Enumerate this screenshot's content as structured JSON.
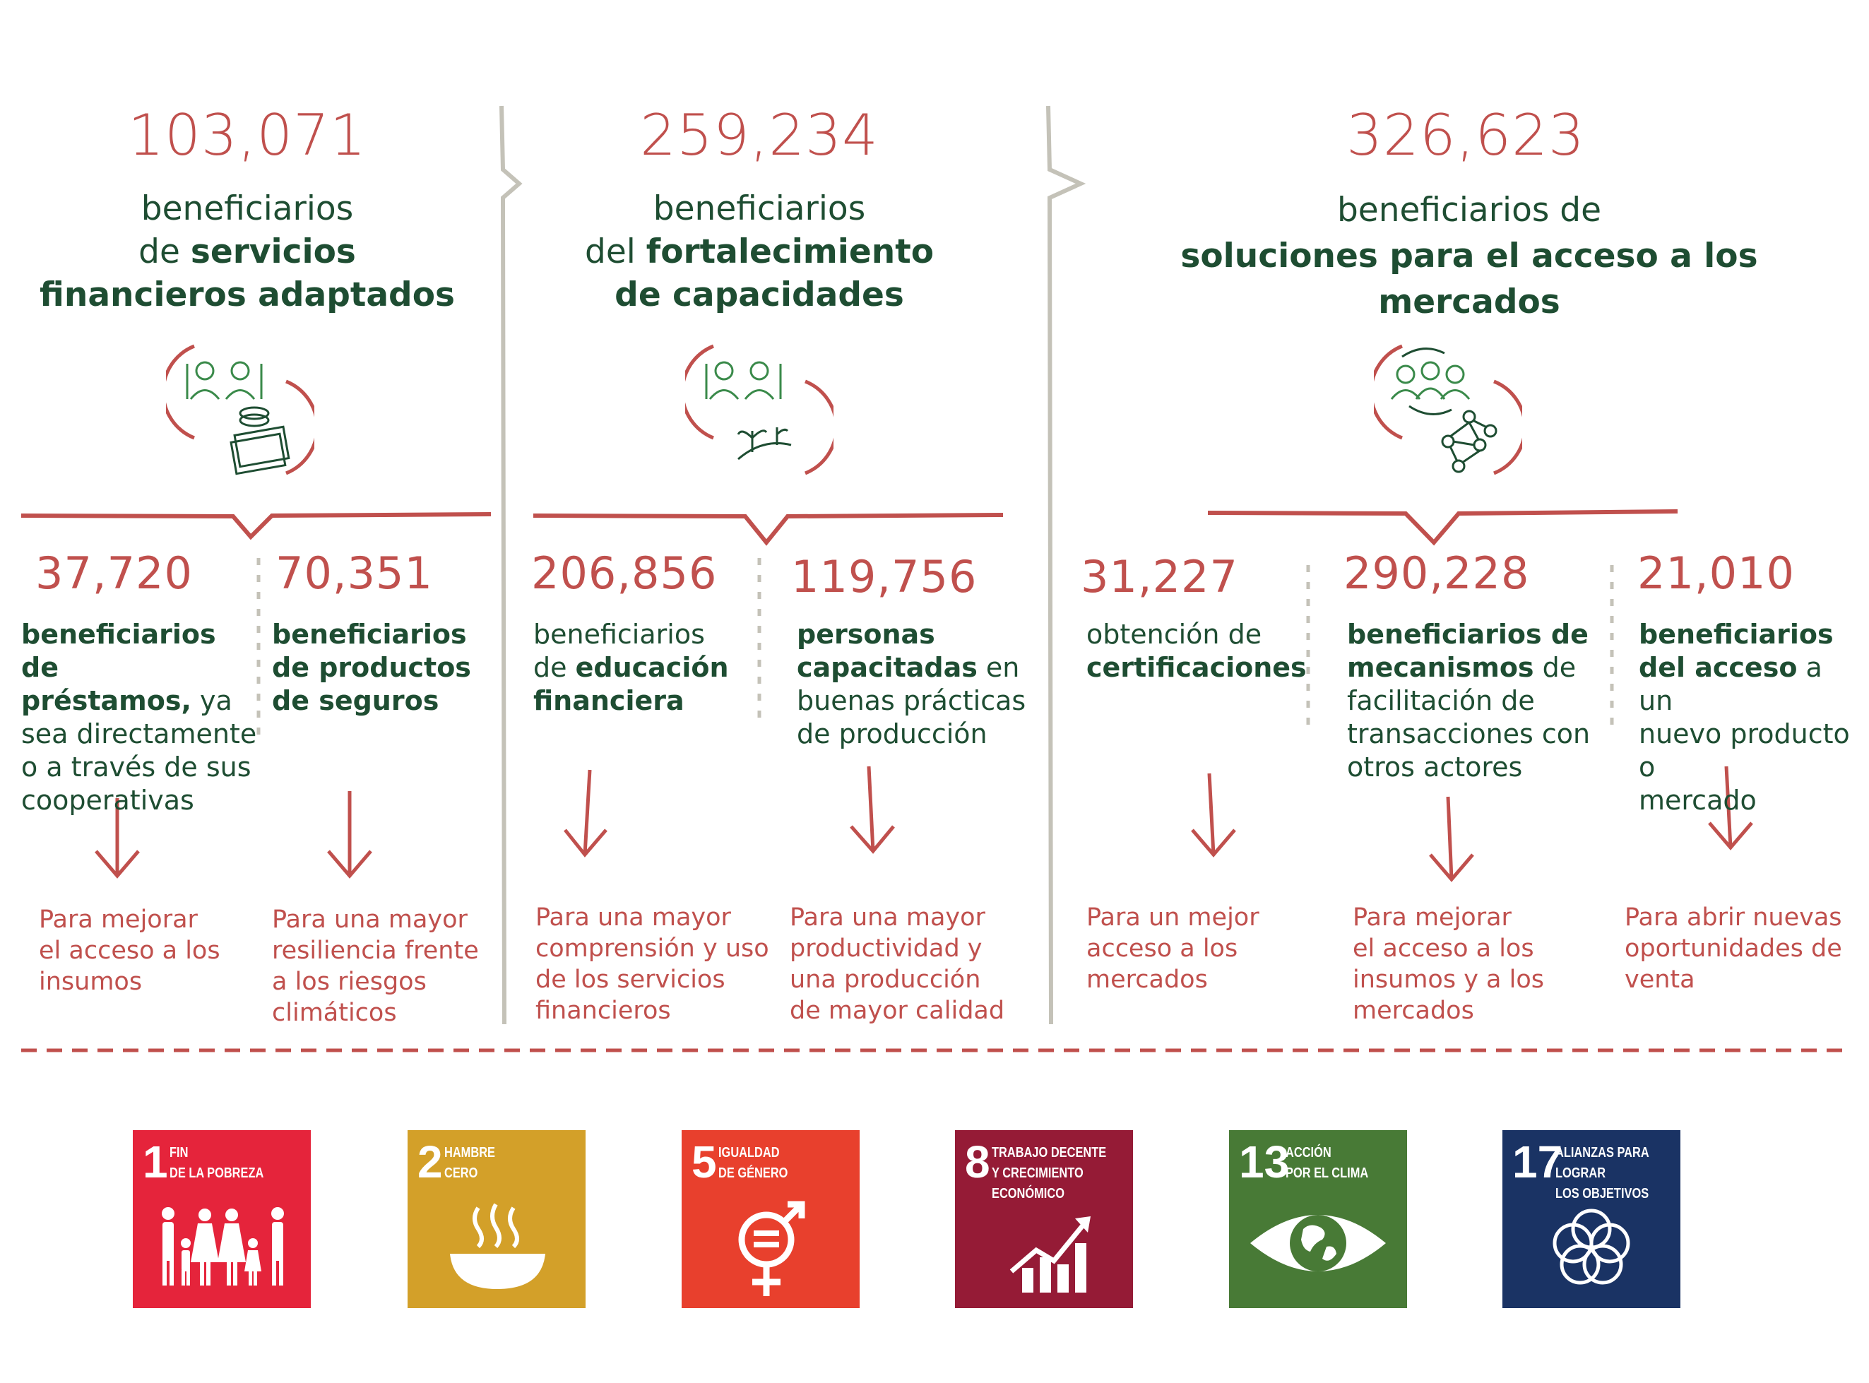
{
  "colors": {
    "red": "#c0504d",
    "green": "#1e4d32",
    "divider": "#c4c2b8"
  },
  "sections": [
    {
      "total": "103,071",
      "sub_pre": "beneficiarios",
      "sub_mid": "de ",
      "sub_bold1": "servicios",
      "sub_bold2": "financieros adaptados",
      "icon": "farmers-money-icon"
    },
    {
      "total": "259,234",
      "sub_pre": "beneficiarios",
      "sub_mid": "del ",
      "sub_bold1": "fortalecimiento",
      "sub_bold2": "de capacidades",
      "icon": "farmers-plants-icon"
    },
    {
      "total": "326,623",
      "sub_pre": "beneficiarios de",
      "sub_bold1": "soluciones para el acceso a los",
      "sub_bold2": "mercados",
      "icon": "farmers-network-icon"
    }
  ],
  "items": [
    {
      "value": "37,720",
      "bold1": "beneficiarios de",
      "bold2": "préstamos,",
      "rest2": " ya",
      "line3": "sea directamente",
      "line4": "o a través de sus",
      "line5": "cooperativas",
      "result": [
        "Para mejorar",
        "el acceso a los",
        "insumos"
      ]
    },
    {
      "value": "70,351",
      "bold1": "beneficiarios",
      "bold2": "de productos",
      "bold3": "de seguros",
      "result": [
        "Para una mayor",
        "resiliencia frente",
        "a los riesgos",
        "climáticos"
      ]
    },
    {
      "value": "206,856",
      "line1": "beneficiarios",
      "pre2": "de ",
      "bold2": "educación",
      "bold3": "financiera",
      "result": [
        "Para una mayor",
        "comprensión y uso",
        "de los servicios",
        "financieros"
      ]
    },
    {
      "value": "119,756",
      "bold1": "personas",
      "bold2": "capacitadas",
      "rest2": " en",
      "line3": "buenas prácticas",
      "line4": "de producción",
      "result": [
        "Para una mayor",
        "productividad y",
        "una producción",
        "de mayor calidad"
      ]
    },
    {
      "value": "31,227",
      "line1": "obtención de",
      "bold2": "certificaciones",
      "result": [
        "Para un mejor",
        "acceso a los",
        "mercados"
      ]
    },
    {
      "value": "290,228",
      "bold1": "beneficiarios de",
      "bold2": "mecanismos",
      "rest2": " de",
      "line3": "facilitación de",
      "line4": "transacciones con",
      "line5": "otros actores",
      "result": [
        "Para mejorar",
        "el acceso a los",
        "insumos y a los",
        "mercados"
      ]
    },
    {
      "value": "21,010",
      "bold1": "beneficiarios",
      "bold2": "del acceso",
      "rest2": " a un",
      "line3": "nuevo producto o",
      "line4": "mercado",
      "result": [
        "Para abrir nuevas",
        "oportunidades de",
        "venta"
      ]
    }
  ],
  "sdgs": [
    {
      "num": "1",
      "label": "FIN\nDE LA POBREZA",
      "color": "#e5243b",
      "icon": "family-icon"
    },
    {
      "num": "2",
      "label": "HAMBRE\nCERO",
      "color": "#d3a029",
      "icon": "bowl-icon"
    },
    {
      "num": "5",
      "label": "IGUALDAD\nDE GÉNERO",
      "color": "#e8402d",
      "icon": "gender-equality-icon"
    },
    {
      "num": "8",
      "label": "TRABAJO DECENTE\nY CRECIMIENTO\nECONÓMICO",
      "color": "#951b36",
      "icon": "growth-chart-icon"
    },
    {
      "num": "13",
      "label": "ACCIÓN\nPOR EL CLIMA",
      "color": "#487a36",
      "icon": "earth-eye-icon"
    },
    {
      "num": "17",
      "label": "ALIANZAS PARA\nLOGRAR\nLOS OBJETIVOS",
      "color": "#1a3364",
      "icon": "rings-icon"
    }
  ]
}
